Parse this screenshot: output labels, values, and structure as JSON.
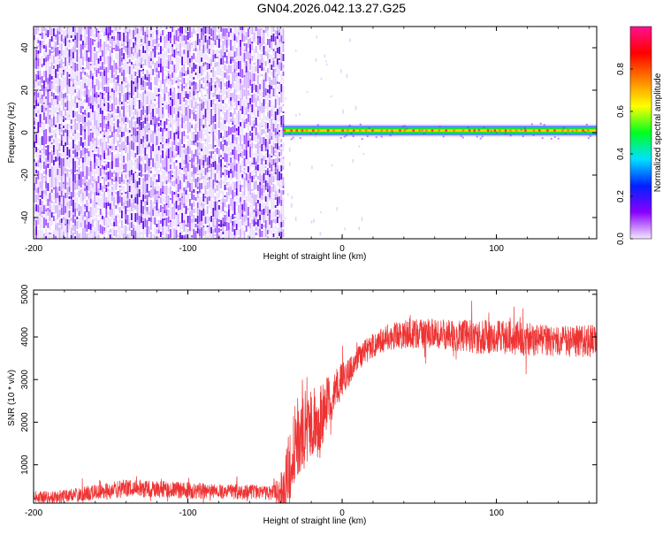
{
  "title": "GN04.2026.042.13.27.G25",
  "chart_data": [
    {
      "type": "heatmap",
      "name": "spectrogram",
      "xlabel": "Height of straight line (km)",
      "ylabel": "Frequency (Hz)",
      "xlim": [
        -200,
        165
      ],
      "ylim": [
        -50,
        50
      ],
      "xticks": [
        -200,
        -100,
        0,
        100
      ],
      "yticks": [
        -40,
        -20,
        0,
        20,
        40
      ],
      "noise_region_x": [
        -200,
        -38
      ],
      "carrier": {
        "x_start": -38,
        "x_end": 165,
        "frequency_hz": 1
      },
      "colorbar": {
        "label": "Normalized spectral amplitude",
        "range": [
          0,
          1
        ],
        "ticks": [
          "0.0",
          "0.2",
          "0.4",
          "0.6",
          "0.8"
        ],
        "colors": [
          "#f3e8ff",
          "#8a00ff",
          "#0020ff",
          "#00e0ff",
          "#00ff20",
          "#ffff00",
          "#ff8000",
          "#ff0000",
          "#ff1090"
        ]
      }
    },
    {
      "type": "line",
      "name": "snr",
      "xlabel": "Height of straight line (km)",
      "ylabel": "SNR (10 * v/v)",
      "xlim": [
        -200,
        165
      ],
      "ylim": [
        100,
        5100
      ],
      "xticks": [
        -200,
        -100,
        0,
        100
      ],
      "yticks": [
        1000,
        2000,
        3000,
        4000,
        5000
      ],
      "color": "#ee3333",
      "envelope": {
        "x": [
          -200,
          -185,
          -170,
          -155,
          -140,
          -120,
          -100,
          -80,
          -60,
          -45,
          -38,
          -34,
          -30,
          -25,
          -20,
          -15,
          -10,
          -5,
          0,
          5,
          10,
          20,
          30,
          40,
          60,
          80,
          100,
          120,
          140,
          165
        ],
        "center": [
          250,
          240,
          300,
          380,
          450,
          430,
          400,
          380,
          360,
          340,
          400,
          1000,
          1600,
          1900,
          1900,
          2000,
          2400,
          2700,
          3000,
          3200,
          3500,
          3800,
          4000,
          4050,
          4100,
          4000,
          4000,
          3950,
          3900,
          3900
        ],
        "amplitude": [
          150,
          150,
          170,
          200,
          220,
          200,
          200,
          180,
          180,
          170,
          600,
          900,
          900,
          1000,
          900,
          800,
          700,
          500,
          400,
          350,
          300,
          300,
          300,
          350,
          350,
          400,
          400,
          400,
          350,
          400
        ]
      }
    }
  ]
}
